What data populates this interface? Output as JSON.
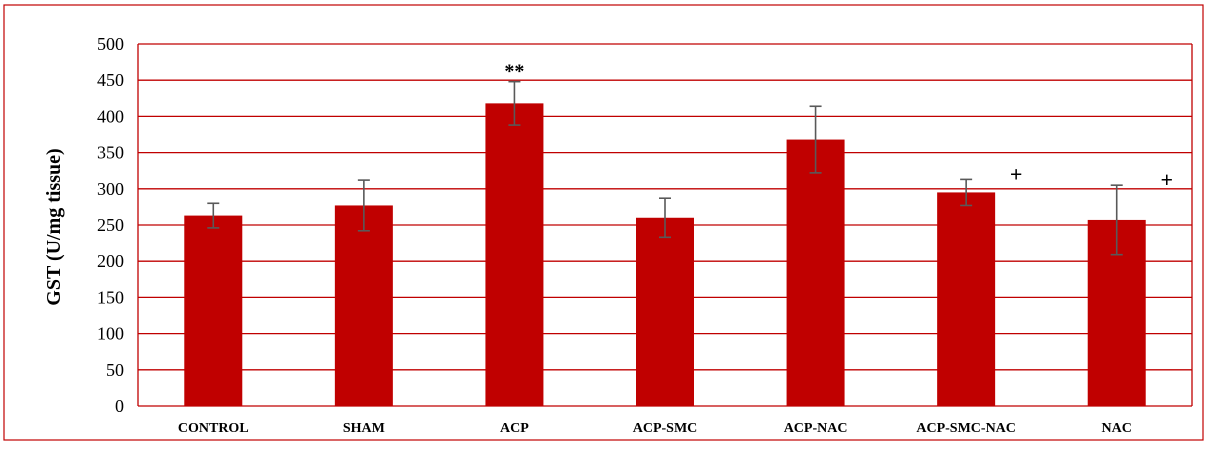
{
  "colors": {
    "bar": "#c00000",
    "grid": "#c00000",
    "frame_border": "#c00000",
    "error_bar": "#595959",
    "text": "#000000"
  },
  "chart_data": {
    "type": "bar",
    "ylabel": "GST (U/mg tissue)",
    "xlabel": "",
    "title": "",
    "ylim": [
      0,
      500
    ],
    "yticks": [
      0,
      50,
      100,
      150,
      200,
      250,
      300,
      350,
      400,
      450,
      500
    ],
    "categories": [
      "CONTROL",
      "SHAM",
      "ACP",
      "ACP-SMC",
      "ACP-NAC",
      "ACP-SMC-NAC",
      "NAC"
    ],
    "values": [
      263,
      277,
      418,
      260,
      368,
      295,
      257
    ],
    "errors": [
      17,
      35,
      30,
      27,
      46,
      18,
      48
    ],
    "annotations": [
      "",
      "",
      "**",
      "",
      "",
      "+",
      "+"
    ],
    "grid": true,
    "legend": "none"
  }
}
